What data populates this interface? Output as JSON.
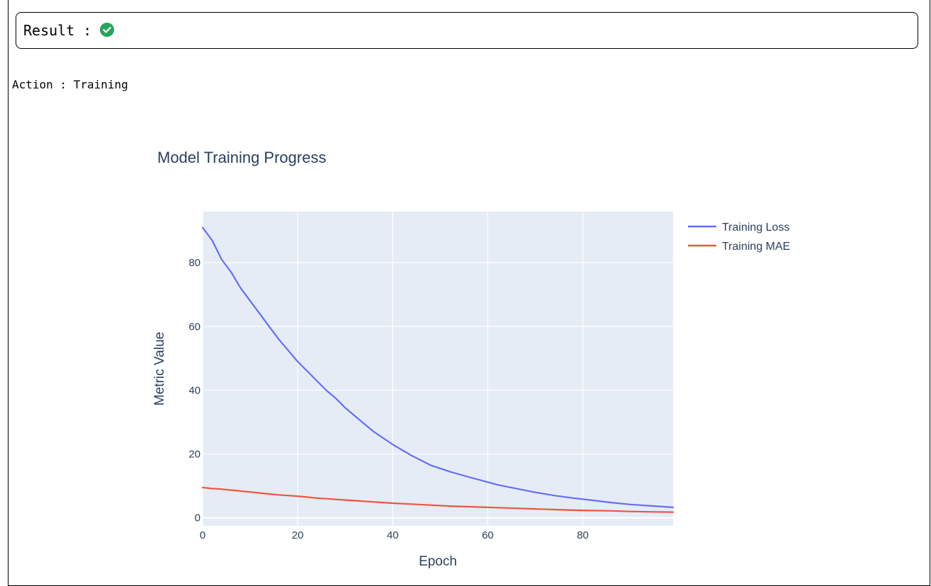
{
  "result": {
    "label": "Result :",
    "status_icon": "check-circle-icon",
    "status_color": "#27a35a"
  },
  "action": {
    "label": "Action :",
    "value": "Training"
  },
  "chart_data": {
    "type": "line",
    "title": "Model Training Progress",
    "xlabel": "Epoch",
    "ylabel": "Metric Value",
    "xlim": [
      0,
      99
    ],
    "ylim": [
      -2.5,
      96
    ],
    "xticks": [
      0,
      20,
      40,
      60,
      80
    ],
    "yticks": [
      0,
      20,
      40,
      60,
      80
    ],
    "grid": true,
    "legend": "top-right",
    "plot_bg": "#e5ecf6",
    "x": [
      0,
      2,
      3,
      4,
      6,
      8,
      10,
      12,
      14,
      16,
      18,
      20,
      22,
      24,
      26,
      28,
      30,
      32,
      34,
      36,
      38,
      40,
      44,
      48,
      52,
      56,
      60,
      62,
      66,
      70,
      74,
      78,
      82,
      86,
      90,
      94,
      99
    ],
    "series": [
      {
        "name": "Training Loss",
        "color": "#636efa",
        "values": [
          91,
          87,
          84,
          81,
          77,
          72,
          68,
          64,
          60,
          56,
          52.5,
          49,
          46,
          43,
          40,
          37.5,
          34.5,
          32,
          29.5,
          27,
          25,
          23,
          19.5,
          16.5,
          14.5,
          12.8,
          11.2,
          10.4,
          9.2,
          8.0,
          7.0,
          6.2,
          5.5,
          4.8,
          4.2,
          3.8,
          3.3
        ]
      },
      {
        "name": "Training MAE",
        "color": "#ef553b",
        "values": [
          9.5,
          9.2,
          9.1,
          9.0,
          8.7,
          8.4,
          8.1,
          7.8,
          7.5,
          7.2,
          7.0,
          6.8,
          6.5,
          6.2,
          6.0,
          5.8,
          5.6,
          5.4,
          5.2,
          5.0,
          4.8,
          4.6,
          4.3,
          4.0,
          3.7,
          3.5,
          3.3,
          3.2,
          3.0,
          2.8,
          2.6,
          2.4,
          2.3,
          2.2,
          2.0,
          1.9,
          1.8
        ]
      }
    ]
  }
}
